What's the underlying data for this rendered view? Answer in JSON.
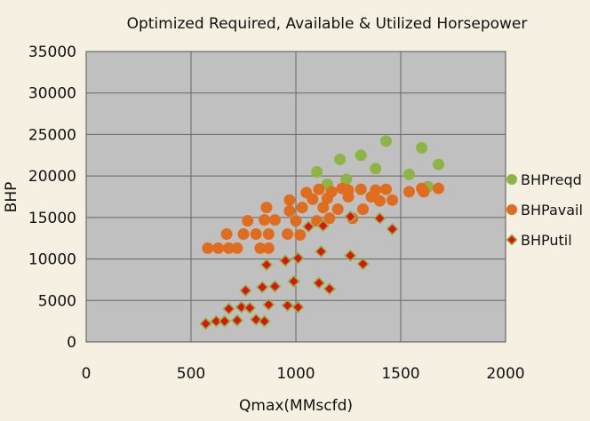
{
  "chart_data": {
    "type": "scatter",
    "title": "Optimized Required, Available & Utilized Horsepower",
    "xlabel": "Qmax(MMscfd)",
    "ylabel": "BHP",
    "xlim": [
      0,
      2000
    ],
    "ylim": [
      0,
      35000
    ],
    "x_ticks": [
      "0",
      "500",
      "1000",
      "1500",
      "2000"
    ],
    "y_ticks": [
      "0",
      "5000",
      "10000",
      "15000",
      "20000",
      "25000",
      "30000",
      "35000"
    ],
    "grid": true,
    "legend_position": "right",
    "series": [
      {
        "name": "BHPreqd",
        "color": "#8db544",
        "marker": "circle",
        "points": [
          [
            1100,
            20500
          ],
          [
            1150,
            19000
          ],
          [
            1210,
            22000
          ],
          [
            1240,
            19600
          ],
          [
            1310,
            22500
          ],
          [
            1380,
            20900
          ],
          [
            1430,
            24200
          ],
          [
            1540,
            20200
          ],
          [
            1600,
            23400
          ],
          [
            1630,
            18700
          ],
          [
            1680,
            21400
          ]
        ]
      },
      {
        "name": "BHPavail",
        "color": "#e06c1e",
        "marker": "circle",
        "points": [
          [
            580,
            11300
          ],
          [
            630,
            11300
          ],
          [
            680,
            11300
          ],
          [
            670,
            13000
          ],
          [
            720,
            11300
          ],
          [
            750,
            13000
          ],
          [
            770,
            14600
          ],
          [
            810,
            13000
          ],
          [
            830,
            11300
          ],
          [
            850,
            14700
          ],
          [
            860,
            16200
          ],
          [
            870,
            11300
          ],
          [
            870,
            13000
          ],
          [
            900,
            14700
          ],
          [
            960,
            13000
          ],
          [
            970,
            15800
          ],
          [
            970,
            17100
          ],
          [
            1000,
            14600
          ],
          [
            1020,
            12900
          ],
          [
            1030,
            16200
          ],
          [
            1050,
            18000
          ],
          [
            1080,
            17200
          ],
          [
            1110,
            18400
          ],
          [
            1100,
            14600
          ],
          [
            1130,
            16200
          ],
          [
            1150,
            17300
          ],
          [
            1160,
            14900
          ],
          [
            1170,
            18100
          ],
          [
            1200,
            16000
          ],
          [
            1220,
            18500
          ],
          [
            1250,
            17500
          ],
          [
            1250,
            18300
          ],
          [
            1270,
            14900
          ],
          [
            1310,
            18400
          ],
          [
            1320,
            16000
          ],
          [
            1360,
            17500
          ],
          [
            1380,
            18300
          ],
          [
            1400,
            17000
          ],
          [
            1430,
            18400
          ],
          [
            1460,
            17100
          ],
          [
            1540,
            18100
          ],
          [
            1600,
            18500
          ],
          [
            1610,
            18100
          ],
          [
            1680,
            18500
          ]
        ]
      },
      {
        "name": "BHPutil",
        "color": "#e3100f",
        "marker": "diamond",
        "points": [
          [
            570,
            2200
          ],
          [
            620,
            2500
          ],
          [
            660,
            2500
          ],
          [
            680,
            4000
          ],
          [
            720,
            2600
          ],
          [
            740,
            4200
          ],
          [
            760,
            6200
          ],
          [
            780,
            4100
          ],
          [
            810,
            2700
          ],
          [
            840,
            6600
          ],
          [
            850,
            2500
          ],
          [
            860,
            9300
          ],
          [
            870,
            4500
          ],
          [
            900,
            6700
          ],
          [
            950,
            9800
          ],
          [
            960,
            4400
          ],
          [
            990,
            7300
          ],
          [
            1010,
            4200
          ],
          [
            1010,
            10100
          ],
          [
            1060,
            13900
          ],
          [
            1110,
            7100
          ],
          [
            1120,
            10900
          ],
          [
            1130,
            14000
          ],
          [
            1160,
            6400
          ],
          [
            1260,
            15100
          ],
          [
            1260,
            10400
          ],
          [
            1320,
            9400
          ],
          [
            1400,
            14900
          ],
          [
            1460,
            13600
          ]
        ]
      }
    ]
  }
}
